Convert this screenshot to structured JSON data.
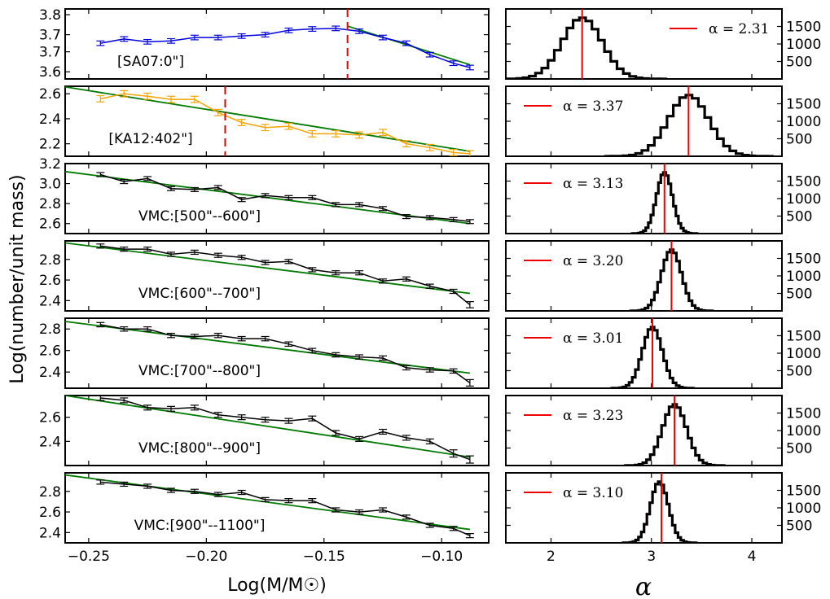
{
  "chart_data": {
    "type": "line",
    "ylabel": "Log(number/unit mass)",
    "left_xlabel": "Log(M/M☉)",
    "right_xlabel": "α",
    "left_xlim": [
      -0.26,
      -0.08
    ],
    "left_xticks": [
      "−0.25",
      "−0.20",
      "−0.15",
      "−0.10"
    ],
    "left_xtick_values": [
      -0.25,
      -0.2,
      -0.15,
      -0.1
    ],
    "right_xlim": [
      1.55,
      4.3
    ],
    "right_xticks": [
      "2",
      "3",
      "4"
    ],
    "right_xtick_values": [
      2,
      3,
      4
    ],
    "hist_ylim": [
      0,
      2000
    ],
    "hist_yticks": [
      "500",
      "1000",
      "1500"
    ],
    "hist_ytick_values": [
      500,
      1000,
      1500
    ],
    "colors": {
      "blue": "#0000dd",
      "orange": "#f5a300",
      "black": "#000000",
      "green": "#007a00",
      "red": "#ee0000"
    },
    "panels": [
      {
        "label": "[SA07:0\"]",
        "color": "blue",
        "ylim": [
          3.575,
          3.82
        ],
        "yticks": [
          "3.8",
          "3.7",
          "3.7",
          "3.6"
        ],
        "ytick_values": [
          3.8,
          3.73,
          3.67,
          3.6
        ],
        "x": [
          -0.245,
          -0.235,
          -0.225,
          -0.215,
          -0.205,
          -0.195,
          -0.185,
          -0.175,
          -0.165,
          -0.155,
          -0.145,
          -0.135,
          -0.125,
          -0.115,
          -0.105,
          -0.095,
          -0.088
        ],
        "y": [
          3.7,
          3.715,
          3.705,
          3.708,
          3.72,
          3.72,
          3.725,
          3.73,
          3.745,
          3.75,
          3.752,
          3.742,
          3.72,
          3.7,
          3.66,
          3.63,
          3.615
        ],
        "err": [
          0.008,
          0.008,
          0.008,
          0.008,
          0.008,
          0.008,
          0.008,
          0.008,
          0.008,
          0.008,
          0.008,
          0.008,
          0.008,
          0.008,
          0.008,
          0.008,
          0.008
        ],
        "fit": {
          "x": [
            -0.14,
            -0.088
          ],
          "y": [
            3.76,
            3.625
          ]
        },
        "break_x": -0.14,
        "alpha": 2.31,
        "alpha_text": "α = 2.31",
        "legend_pos": "right",
        "hist_center": 2.31,
        "hist_sigma": 0.2
      },
      {
        "label": "[KA12:402\"]",
        "color": "orange",
        "ylim": [
          2.1,
          2.66
        ],
        "yticks": [
          "2.6",
          "2.4",
          "2.2"
        ],
        "ytick_values": [
          2.6,
          2.4,
          2.2
        ],
        "x": [
          -0.245,
          -0.235,
          -0.225,
          -0.215,
          -0.205,
          -0.195,
          -0.185,
          -0.175,
          -0.165,
          -0.155,
          -0.145,
          -0.135,
          -0.125,
          -0.115,
          -0.105,
          -0.095,
          -0.088
        ],
        "y": [
          2.56,
          2.6,
          2.58,
          2.555,
          2.555,
          2.45,
          2.37,
          2.33,
          2.34,
          2.28,
          2.28,
          2.27,
          2.29,
          2.2,
          2.17,
          2.13,
          2.12
        ],
        "err": [
          0.025,
          0.025,
          0.025,
          0.025,
          0.025,
          0.025,
          0.025,
          0.025,
          0.025,
          0.025,
          0.025,
          0.025,
          0.025,
          0.025,
          0.025,
          0.025,
          0.025
        ],
        "fit": {
          "x": [
            -0.26,
            -0.088
          ],
          "y": [
            2.655,
            2.14
          ]
        },
        "break_x": -0.192,
        "alpha": 3.37,
        "alpha_text": "α = 3.37",
        "legend_pos": "left",
        "hist_center": 3.37,
        "hist_sigma": 0.2
      },
      {
        "label": "VMC:[500\"--600\"]",
        "color": "black",
        "ylim": [
          2.5,
          3.2
        ],
        "yticks": [
          "3.2",
          "3.0",
          "2.8",
          "2.6"
        ],
        "ytick_values": [
          3.2,
          3.0,
          2.8,
          2.6
        ],
        "x": [
          -0.245,
          -0.235,
          -0.225,
          -0.215,
          -0.205,
          -0.195,
          -0.185,
          -0.175,
          -0.165,
          -0.155,
          -0.145,
          -0.135,
          -0.125,
          -0.115,
          -0.105,
          -0.095,
          -0.088
        ],
        "y": [
          3.09,
          3.02,
          3.05,
          2.95,
          2.94,
          2.96,
          2.84,
          2.88,
          2.86,
          2.86,
          2.79,
          2.79,
          2.75,
          2.67,
          2.66,
          2.64,
          2.62
        ],
        "err": [
          0.02,
          0.02,
          0.02,
          0.02,
          0.02,
          0.02,
          0.02,
          0.02,
          0.02,
          0.02,
          0.02,
          0.02,
          0.02,
          0.02,
          0.02,
          0.02,
          0.02
        ],
        "fit": {
          "x": [
            -0.26,
            -0.088
          ],
          "y": [
            3.12,
            2.6
          ]
        },
        "break_x": null,
        "alpha": 3.13,
        "alpha_text": "α = 3.13",
        "legend_pos": "left",
        "hist_center": 3.13,
        "hist_sigma": 0.08
      },
      {
        "label": "VMC:[600\"--700\"]",
        "color": "black",
        "ylim": [
          2.3,
          2.98
        ],
        "yticks": [
          "2.8",
          "2.6",
          "2.4"
        ],
        "ytick_values": [
          2.8,
          2.6,
          2.4
        ],
        "x": [
          -0.245,
          -0.235,
          -0.225,
          -0.215,
          -0.205,
          -0.195,
          -0.185,
          -0.175,
          -0.165,
          -0.155,
          -0.145,
          -0.135,
          -0.125,
          -0.115,
          -0.105,
          -0.095,
          -0.088
        ],
        "y": [
          2.93,
          2.9,
          2.9,
          2.85,
          2.87,
          2.84,
          2.82,
          2.77,
          2.78,
          2.7,
          2.67,
          2.67,
          2.59,
          2.61,
          2.54,
          2.49,
          2.36
        ],
        "err": [
          0.02,
          0.02,
          0.02,
          0.02,
          0.02,
          0.02,
          0.02,
          0.02,
          0.02,
          0.02,
          0.02,
          0.02,
          0.02,
          0.02,
          0.02,
          0.02,
          0.03
        ],
        "fit": {
          "x": [
            -0.26,
            -0.088
          ],
          "y": [
            2.96,
            2.47
          ]
        },
        "break_x": null,
        "alpha": 3.2,
        "alpha_text": "α = 3.20",
        "legend_pos": "left",
        "hist_center": 3.2,
        "hist_sigma": 0.1
      },
      {
        "label": "VMC:[700\"--800\"]",
        "color": "black",
        "ylim": [
          2.25,
          2.9
        ],
        "yticks": [
          "2.8",
          "2.6",
          "2.4"
        ],
        "ytick_values": [
          2.8,
          2.6,
          2.4
        ],
        "x": [
          -0.245,
          -0.235,
          -0.225,
          -0.215,
          -0.205,
          -0.195,
          -0.185,
          -0.175,
          -0.165,
          -0.155,
          -0.145,
          -0.135,
          -0.125,
          -0.115,
          -0.105,
          -0.095,
          -0.088
        ],
        "y": [
          2.84,
          2.8,
          2.8,
          2.74,
          2.73,
          2.74,
          2.71,
          2.71,
          2.66,
          2.6,
          2.56,
          2.54,
          2.53,
          2.44,
          2.42,
          2.41,
          2.3
        ],
        "err": [
          0.02,
          0.02,
          0.02,
          0.02,
          0.02,
          0.02,
          0.02,
          0.02,
          0.02,
          0.02,
          0.02,
          0.02,
          0.02,
          0.02,
          0.02,
          0.02,
          0.03
        ],
        "fit": {
          "x": [
            -0.26,
            -0.088
          ],
          "y": [
            2.87,
            2.39
          ]
        },
        "break_x": null,
        "alpha": 3.01,
        "alpha_text": "α = 3.01",
        "legend_pos": "left",
        "hist_center": 3.01,
        "hist_sigma": 0.1
      },
      {
        "label": "VMC:[800\"--900\"]",
        "color": "black",
        "ylim": [
          2.2,
          2.78
        ],
        "yticks": [
          "2.6",
          "2.4"
        ],
        "ytick_values": [
          2.6,
          2.4
        ],
        "x": [
          -0.245,
          -0.235,
          -0.225,
          -0.215,
          -0.205,
          -0.195,
          -0.185,
          -0.175,
          -0.165,
          -0.155,
          -0.145,
          -0.135,
          -0.125,
          -0.115,
          -0.105,
          -0.095,
          -0.088
        ],
        "y": [
          2.76,
          2.74,
          2.68,
          2.67,
          2.68,
          2.62,
          2.6,
          2.58,
          2.57,
          2.59,
          2.47,
          2.42,
          2.48,
          2.43,
          2.4,
          2.3,
          2.25
        ],
        "err": [
          0.02,
          0.02,
          0.02,
          0.02,
          0.02,
          0.02,
          0.02,
          0.02,
          0.02,
          0.02,
          0.02,
          0.02,
          0.02,
          0.02,
          0.02,
          0.03,
          0.03
        ],
        "fit": {
          "x": [
            -0.26,
            -0.088
          ],
          "y": [
            2.78,
            2.27
          ]
        },
        "break_x": null,
        "alpha": 3.23,
        "alpha_text": "α = 3.23",
        "legend_pos": "left",
        "hist_center": 3.23,
        "hist_sigma": 0.12
      },
      {
        "label": "VMC:[900\"--1100\"]",
        "color": "black",
        "ylim": [
          2.3,
          2.98
        ],
        "yticks": [
          "2.8",
          "2.6",
          "2.4"
        ],
        "ytick_values": [
          2.8,
          2.6,
          2.4
        ],
        "x": [
          -0.245,
          -0.235,
          -0.225,
          -0.215,
          -0.205,
          -0.195,
          -0.185,
          -0.175,
          -0.165,
          -0.155,
          -0.145,
          -0.135,
          -0.125,
          -0.115,
          -0.105,
          -0.095,
          -0.088
        ],
        "y": [
          2.89,
          2.87,
          2.85,
          2.81,
          2.8,
          2.77,
          2.79,
          2.72,
          2.71,
          2.71,
          2.62,
          2.6,
          2.62,
          2.55,
          2.47,
          2.44,
          2.37
        ],
        "err": [
          0.02,
          0.02,
          0.02,
          0.02,
          0.02,
          0.02,
          0.02,
          0.02,
          0.02,
          0.02,
          0.02,
          0.02,
          0.02,
          0.02,
          0.02,
          0.02,
          0.02
        ],
        "fit": {
          "x": [
            -0.26,
            -0.088
          ],
          "y": [
            2.96,
            2.43
          ]
        },
        "break_x": null,
        "alpha": 3.1,
        "alpha_text": "α = 3.10",
        "legend_pos": "left",
        "hist_center": 3.08,
        "hist_sigma": 0.09
      }
    ]
  }
}
